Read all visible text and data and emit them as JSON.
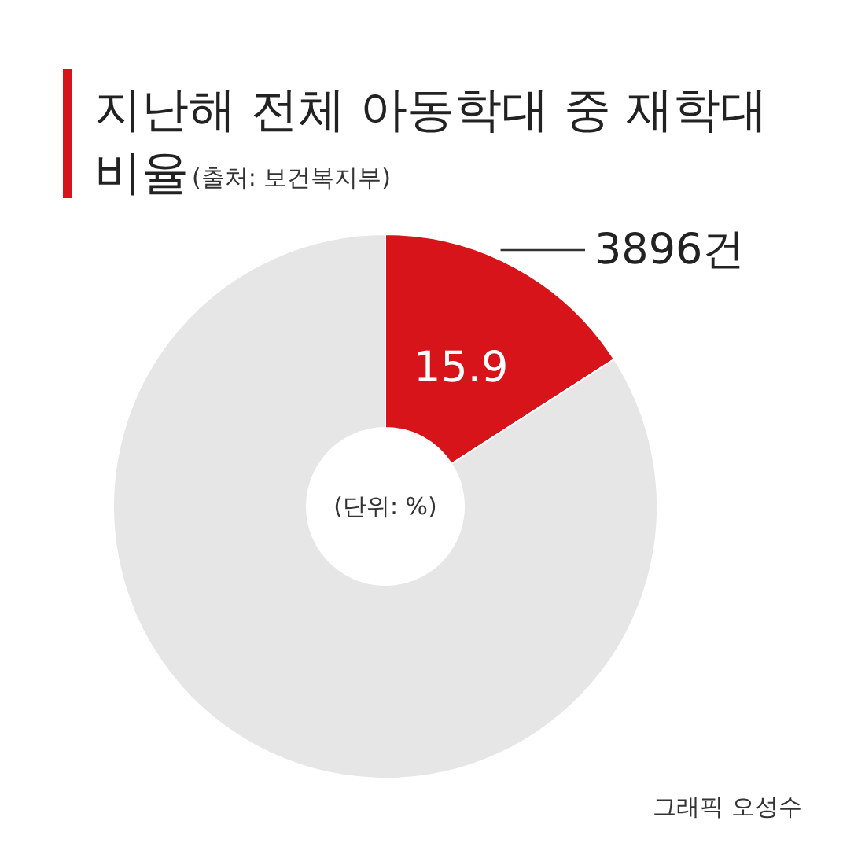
{
  "chart_data": {
    "type": "donut",
    "title": "지난해 전체 아동학대 중 재학대",
    "subtitle": "비율",
    "xlabel": "(출처: 보건복지부)",
    "categories": [
      null,
      null
    ],
    "values": [
      15.9,
      84.1
    ],
    "colors": [
      "#d7141a",
      "#e6e6e6"
    ],
    "value_labels": [
      "15.9",
      null
    ],
    "annotations": [
      "3896건",
      "(단위: %)",
      "그래픽 오성수"
    ]
  }
}
